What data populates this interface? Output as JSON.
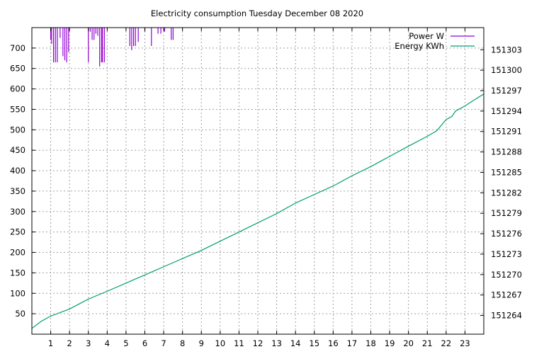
{
  "chart_data": {
    "type": "line",
    "title": "Electricity consumption Tuesday December 08 2020",
    "grid": true,
    "legend_position": "top-right",
    "x": {
      "min": 0,
      "max": 24,
      "ticks": [
        1,
        2,
        3,
        4,
        5,
        6,
        7,
        8,
        9,
        10,
        11,
        12,
        13,
        14,
        15,
        16,
        17,
        18,
        19,
        20,
        21,
        22,
        23
      ]
    },
    "y_left": {
      "label": "",
      "min": 0,
      "max": 750,
      "ticks": [
        50,
        100,
        150,
        200,
        250,
        300,
        350,
        400,
        450,
        500,
        550,
        600,
        650,
        700
      ]
    },
    "y_right": {
      "label": "",
      "min": 151261.25,
      "max": 151306.25,
      "ticks": [
        151264,
        151267,
        151270,
        151273,
        151276,
        151279,
        151282,
        151285,
        151288,
        151291,
        151294,
        151297,
        151300,
        151303
      ]
    },
    "series": [
      {
        "name": "Power W",
        "axis": "left",
        "style": "impulses",
        "color": "#9400d3",
        "x": [
          1.0,
          1.05,
          1.15,
          1.25,
          1.35,
          1.5,
          1.65,
          1.75,
          1.85,
          1.95,
          3.0,
          3.1,
          3.2,
          3.3,
          3.4,
          3.5,
          3.6,
          3.7,
          3.75,
          3.85,
          5.2,
          5.3,
          5.4,
          5.5,
          5.65,
          6.0,
          6.35,
          6.7,
          6.85,
          7.05,
          7.4,
          7.5
        ],
        "values": [
          720,
          710,
          665,
          665,
          665,
          725,
          680,
          670,
          665,
          690,
          665,
          740,
          720,
          720,
          735,
          730,
          655,
          665,
          665,
          665,
          705,
          695,
          705,
          705,
          715,
          740,
          705,
          735,
          735,
          740,
          720,
          720
        ]
      },
      {
        "name": "Energy KWh",
        "axis": "right",
        "style": "lines",
        "color": "#009e73",
        "x": [
          0,
          0.5,
          1,
          2,
          3,
          4,
          5,
          6,
          7,
          8,
          9,
          10,
          11,
          12,
          13,
          14,
          15,
          16,
          17,
          18,
          18.5,
          19,
          20,
          21,
          21.5,
          22,
          22.3,
          22.5,
          23,
          23.5,
          24
        ],
        "values": [
          151262.1,
          151263.15,
          151263.9,
          151264.95,
          151266.4,
          151267.55,
          151268.75,
          151269.95,
          151271.15,
          151272.35,
          151273.55,
          151274.9,
          151276.25,
          151277.6,
          151278.95,
          151280.5,
          151281.75,
          151283.0,
          151284.5,
          151285.85,
          151286.6,
          151287.35,
          151288.85,
          151290.3,
          151291.1,
          151292.75,
          151293.2,
          151294.0,
          151294.75,
          151295.65,
          151296.5
        ]
      }
    ]
  }
}
